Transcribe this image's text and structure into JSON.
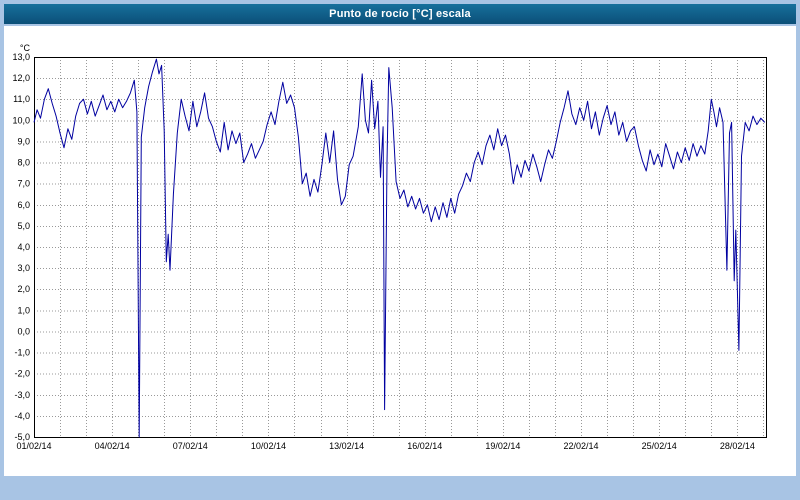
{
  "window": {
    "title": "Punto de rocío [°C] escala"
  },
  "colors": {
    "frame": "#a8c4e4",
    "title_bar_start": "#17709c",
    "title_bar_end": "#0b4f78",
    "title_text": "#ffffff",
    "panel_bg": "#ffffff",
    "plot_border": "#000000",
    "grid": "#999999",
    "line": "#0000a0",
    "tick_text": "#000000"
  },
  "chart_data": {
    "type": "line",
    "title": "Punto de rocío [°C] escala",
    "ylabel": "°C",
    "xlabel": "",
    "ylim": [
      -5,
      13
    ],
    "y_tick_step": 1,
    "y_tick_labels_top_to_bottom": [
      "13,0",
      "12,0",
      "11,0",
      "10,0",
      "9,0",
      "8,0",
      "7,0",
      "6,0",
      "5,0",
      "4,0",
      "3,0",
      "2,0",
      "1,0",
      "0,0",
      "-1,0",
      "-2,0",
      "-3,0",
      "-4,0",
      "-5,0"
    ],
    "x_range_days": [
      0,
      28.1
    ],
    "x_grid_step_days": 1,
    "x_tick_days": [
      0,
      3,
      6,
      9,
      12,
      15,
      18,
      21,
      24,
      27
    ],
    "x_tick_labels": [
      "01/02/14",
      "04/02/14",
      "07/02/14",
      "10/02/14",
      "13/02/14",
      "16/02/14",
      "19/02/14",
      "22/02/14",
      "25/02/14",
      "28/02/14"
    ],
    "grid_style": "dotted",
    "legend": "none",
    "series": [
      {
        "name": "Punto de rocío [°C]",
        "color": "#0000a0",
        "points": [
          [
            0.0,
            9.9
          ],
          [
            0.12,
            10.5
          ],
          [
            0.25,
            10.1
          ],
          [
            0.4,
            11.0
          ],
          [
            0.55,
            11.5
          ],
          [
            0.7,
            10.8
          ],
          [
            0.85,
            10.2
          ],
          [
            1.0,
            9.4
          ],
          [
            1.15,
            8.7
          ],
          [
            1.3,
            9.6
          ],
          [
            1.45,
            9.1
          ],
          [
            1.6,
            10.2
          ],
          [
            1.75,
            10.8
          ],
          [
            1.9,
            11.0
          ],
          [
            2.05,
            10.3
          ],
          [
            2.2,
            10.9
          ],
          [
            2.35,
            10.2
          ],
          [
            2.5,
            10.7
          ],
          [
            2.65,
            11.2
          ],
          [
            2.8,
            10.5
          ],
          [
            2.95,
            10.9
          ],
          [
            3.1,
            10.4
          ],
          [
            3.25,
            11.0
          ],
          [
            3.4,
            10.6
          ],
          [
            3.55,
            10.9
          ],
          [
            3.7,
            11.3
          ],
          [
            3.85,
            11.9
          ],
          [
            3.95,
            10.4
          ],
          [
            4.04,
            -5.0
          ],
          [
            4.12,
            9.2
          ],
          [
            4.25,
            10.6
          ],
          [
            4.4,
            11.6
          ],
          [
            4.55,
            12.3
          ],
          [
            4.7,
            12.9
          ],
          [
            4.8,
            12.2
          ],
          [
            4.9,
            12.6
          ],
          [
            5.0,
            9.5
          ],
          [
            5.08,
            3.3
          ],
          [
            5.15,
            4.6
          ],
          [
            5.22,
            2.9
          ],
          [
            5.35,
            6.5
          ],
          [
            5.5,
            9.4
          ],
          [
            5.65,
            11.0
          ],
          [
            5.8,
            10.2
          ],
          [
            5.95,
            9.5
          ],
          [
            6.1,
            10.9
          ],
          [
            6.25,
            9.7
          ],
          [
            6.4,
            10.4
          ],
          [
            6.55,
            11.3
          ],
          [
            6.7,
            10.1
          ],
          [
            6.85,
            9.7
          ],
          [
            7.0,
            9.0
          ],
          [
            7.15,
            8.5
          ],
          [
            7.3,
            9.9
          ],
          [
            7.45,
            8.6
          ],
          [
            7.6,
            9.5
          ],
          [
            7.75,
            8.9
          ],
          [
            7.9,
            9.4
          ],
          [
            8.05,
            8.0
          ],
          [
            8.2,
            8.4
          ],
          [
            8.35,
            8.9
          ],
          [
            8.5,
            8.2
          ],
          [
            8.65,
            8.6
          ],
          [
            8.8,
            9.0
          ],
          [
            8.95,
            9.8
          ],
          [
            9.1,
            10.4
          ],
          [
            9.25,
            9.8
          ],
          [
            9.4,
            10.9
          ],
          [
            9.55,
            11.8
          ],
          [
            9.7,
            10.8
          ],
          [
            9.85,
            11.2
          ],
          [
            10.0,
            10.6
          ],
          [
            10.15,
            9.2
          ],
          [
            10.3,
            7.0
          ],
          [
            10.45,
            7.5
          ],
          [
            10.6,
            6.4
          ],
          [
            10.75,
            7.2
          ],
          [
            10.9,
            6.6
          ],
          [
            11.05,
            7.9
          ],
          [
            11.2,
            9.4
          ],
          [
            11.35,
            8.0
          ],
          [
            11.5,
            9.5
          ],
          [
            11.65,
            7.2
          ],
          [
            11.8,
            6.0
          ],
          [
            11.95,
            6.4
          ],
          [
            12.1,
            7.9
          ],
          [
            12.25,
            8.3
          ],
          [
            12.45,
            9.7
          ],
          [
            12.6,
            12.2
          ],
          [
            12.72,
            10.0
          ],
          [
            12.84,
            9.4
          ],
          [
            12.96,
            11.9
          ],
          [
            13.08,
            9.6
          ],
          [
            13.2,
            10.9
          ],
          [
            13.3,
            7.3
          ],
          [
            13.4,
            9.7
          ],
          [
            13.46,
            -3.7
          ],
          [
            13.55,
            8.0
          ],
          [
            13.62,
            12.5
          ],
          [
            13.75,
            10.6
          ],
          [
            13.9,
            7.1
          ],
          [
            14.05,
            6.3
          ],
          [
            14.2,
            6.7
          ],
          [
            14.35,
            5.9
          ],
          [
            14.5,
            6.4
          ],
          [
            14.65,
            5.8
          ],
          [
            14.8,
            6.3
          ],
          [
            14.95,
            5.6
          ],
          [
            15.1,
            6.0
          ],
          [
            15.25,
            5.2
          ],
          [
            15.4,
            5.9
          ],
          [
            15.55,
            5.3
          ],
          [
            15.7,
            6.1
          ],
          [
            15.85,
            5.4
          ],
          [
            16.0,
            6.3
          ],
          [
            16.15,
            5.6
          ],
          [
            16.3,
            6.5
          ],
          [
            16.45,
            6.9
          ],
          [
            16.6,
            7.5
          ],
          [
            16.75,
            7.1
          ],
          [
            16.9,
            8.0
          ],
          [
            17.05,
            8.5
          ],
          [
            17.2,
            7.9
          ],
          [
            17.35,
            8.8
          ],
          [
            17.5,
            9.3
          ],
          [
            17.65,
            8.6
          ],
          [
            17.8,
            9.6
          ],
          [
            17.95,
            8.8
          ],
          [
            18.1,
            9.3
          ],
          [
            18.25,
            8.4
          ],
          [
            18.4,
            7.0
          ],
          [
            18.55,
            7.9
          ],
          [
            18.7,
            7.3
          ],
          [
            18.85,
            8.1
          ],
          [
            19.0,
            7.6
          ],
          [
            19.15,
            8.4
          ],
          [
            19.3,
            7.8
          ],
          [
            19.45,
            7.1
          ],
          [
            19.6,
            7.9
          ],
          [
            19.75,
            8.6
          ],
          [
            19.9,
            8.2
          ],
          [
            20.05,
            9.0
          ],
          [
            20.2,
            9.9
          ],
          [
            20.35,
            10.6
          ],
          [
            20.5,
            11.4
          ],
          [
            20.65,
            10.3
          ],
          [
            20.8,
            9.8
          ],
          [
            20.95,
            10.6
          ],
          [
            21.1,
            10.0
          ],
          [
            21.25,
            10.9
          ],
          [
            21.4,
            9.6
          ],
          [
            21.55,
            10.4
          ],
          [
            21.7,
            9.3
          ],
          [
            21.85,
            10.1
          ],
          [
            22.0,
            10.7
          ],
          [
            22.15,
            9.8
          ],
          [
            22.3,
            10.4
          ],
          [
            22.45,
            9.3
          ],
          [
            22.6,
            9.9
          ],
          [
            22.75,
            9.0
          ],
          [
            22.9,
            9.5
          ],
          [
            23.05,
            9.7
          ],
          [
            23.2,
            8.8
          ],
          [
            23.35,
            8.1
          ],
          [
            23.5,
            7.6
          ],
          [
            23.65,
            8.6
          ],
          [
            23.8,
            7.9
          ],
          [
            23.95,
            8.4
          ],
          [
            24.1,
            7.8
          ],
          [
            24.25,
            8.9
          ],
          [
            24.4,
            8.3
          ],
          [
            24.55,
            7.7
          ],
          [
            24.7,
            8.5
          ],
          [
            24.85,
            8.0
          ],
          [
            25.0,
            8.7
          ],
          [
            25.15,
            8.1
          ],
          [
            25.3,
            8.9
          ],
          [
            25.45,
            8.3
          ],
          [
            25.6,
            8.8
          ],
          [
            25.75,
            8.4
          ],
          [
            25.88,
            9.5
          ],
          [
            26.0,
            11.0
          ],
          [
            26.1,
            10.4
          ],
          [
            26.2,
            9.7
          ],
          [
            26.32,
            10.6
          ],
          [
            26.45,
            9.9
          ],
          [
            26.6,
            2.9
          ],
          [
            26.7,
            9.4
          ],
          [
            26.78,
            9.9
          ],
          [
            26.88,
            2.4
          ],
          [
            26.94,
            4.8
          ],
          [
            27.0,
            2.1
          ],
          [
            27.06,
            -0.9
          ],
          [
            27.16,
            8.3
          ],
          [
            27.3,
            9.9
          ],
          [
            27.45,
            9.5
          ],
          [
            27.6,
            10.2
          ],
          [
            27.75,
            9.8
          ],
          [
            27.9,
            10.1
          ],
          [
            28.05,
            9.9
          ]
        ]
      }
    ]
  }
}
